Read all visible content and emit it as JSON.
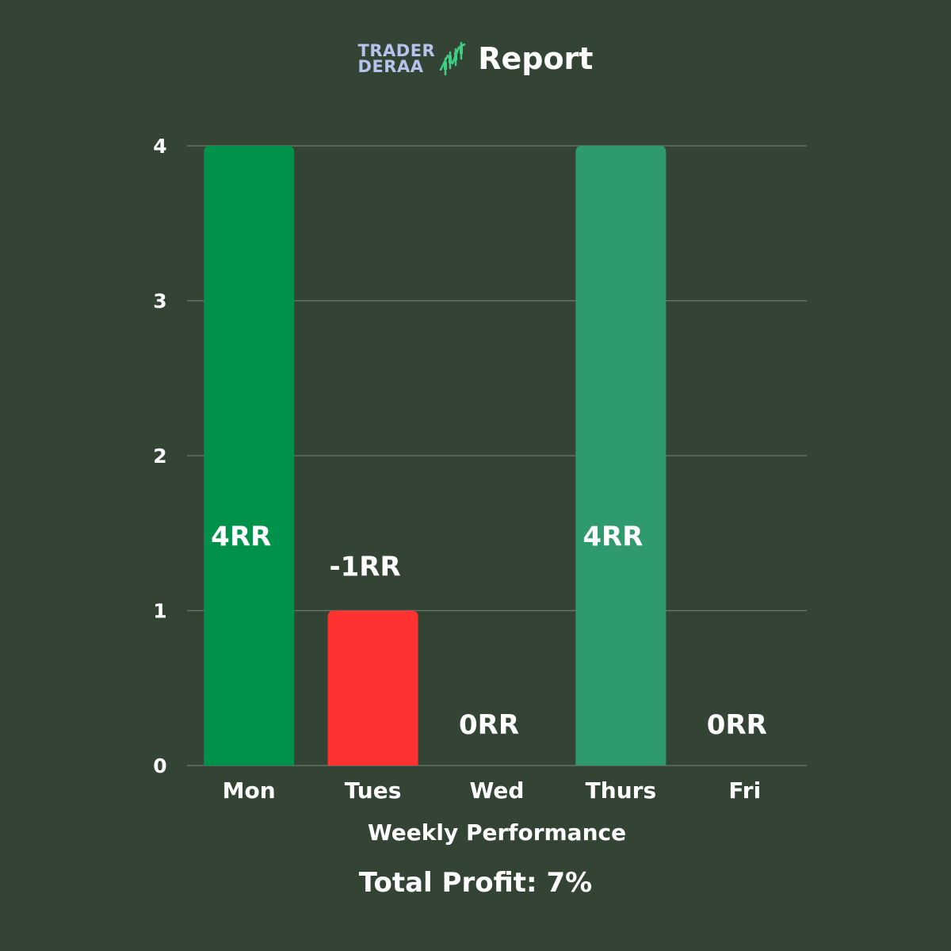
{
  "header": {
    "logo_line1": "TRADER",
    "logo_line2": "DERAA",
    "logo_icon": "candlestick-chart-icon",
    "title": "Report"
  },
  "colors": {
    "background": "#334435",
    "logo_text": "#b6c3ec",
    "logo_icon": "#3fcf82",
    "grid": "#6a7a6c",
    "positive_bar_1": "#00924a",
    "negative_bar": "#ff3232",
    "positive_bar_2": "#2f9a6e"
  },
  "chart_data": {
    "type": "bar",
    "categories": [
      "Mon",
      "Tues",
      "Wed",
      "Thurs",
      "Fri"
    ],
    "values": [
      4,
      1,
      0,
      4,
      0
    ],
    "data_labels": [
      "4RR",
      "-1RR",
      "0RR",
      "4RR",
      "0RR"
    ],
    "bar_colors": [
      "#00924a",
      "#ff3232",
      null,
      "#2f9a6e",
      null
    ],
    "title": "",
    "xlabel": "Weekly Performance",
    "ylabel": "",
    "ylim": [
      0,
      4
    ],
    "yticks": [
      0,
      1,
      2,
      3,
      4
    ],
    "grid": true
  },
  "footer": {
    "total_profit": "Total Profit: 7%"
  }
}
